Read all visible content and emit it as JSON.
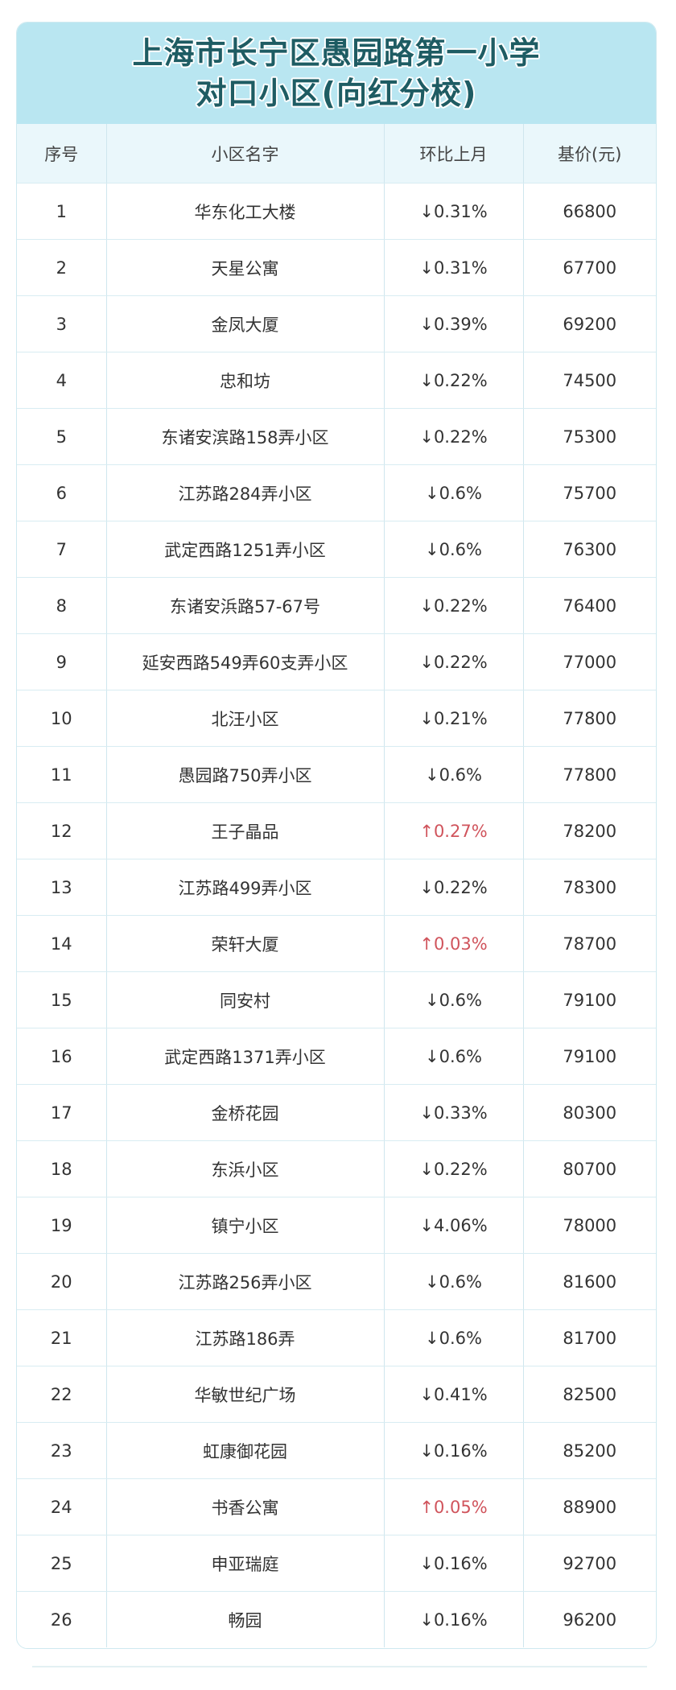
{
  "title": {
    "line1": "上海市长宁区愚园路第一小学",
    "line2": "对口小区(向红分校)"
  },
  "colors": {
    "title_bg": "#b9e6f1",
    "title_text": "#1e5c63",
    "header_bg": "#eaf7fb",
    "up": "#d0545c",
    "down": "#333333"
  },
  "table": {
    "headers": [
      "序号",
      "小区名字",
      "环比上月",
      "基价(元)"
    ],
    "rows": [
      {
        "no": "1",
        "name": "华东化工大楼",
        "change": "↓0.31%",
        "dir": "down",
        "price": "66800"
      },
      {
        "no": "2",
        "name": "天星公寓",
        "change": "↓0.31%",
        "dir": "down",
        "price": "67700"
      },
      {
        "no": "3",
        "name": "金凤大厦",
        "change": "↓0.39%",
        "dir": "down",
        "price": "69200"
      },
      {
        "no": "4",
        "name": "忠和坊",
        "change": "↓0.22%",
        "dir": "down",
        "price": "74500"
      },
      {
        "no": "5",
        "name": "东诸安滨路158弄小区",
        "change": "↓0.22%",
        "dir": "down",
        "price": "75300"
      },
      {
        "no": "6",
        "name": "江苏路284弄小区",
        "change": "↓0.6%",
        "dir": "down",
        "price": "75700"
      },
      {
        "no": "7",
        "name": "武定西路1251弄小区",
        "change": "↓0.6%",
        "dir": "down",
        "price": "76300"
      },
      {
        "no": "8",
        "name": "东诸安浜路57-67号",
        "change": "↓0.22%",
        "dir": "down",
        "price": "76400"
      },
      {
        "no": "9",
        "name": "延安西路549弄60支弄小区",
        "change": "↓0.22%",
        "dir": "down",
        "price": "77000"
      },
      {
        "no": "10",
        "name": "北汪小区",
        "change": "↓0.21%",
        "dir": "down",
        "price": "77800"
      },
      {
        "no": "11",
        "name": "愚园路750弄小区",
        "change": "↓0.6%",
        "dir": "down",
        "price": "77800"
      },
      {
        "no": "12",
        "name": "王子晶品",
        "change": "↑0.27%",
        "dir": "up",
        "price": "78200"
      },
      {
        "no": "13",
        "name": "江苏路499弄小区",
        "change": "↓0.22%",
        "dir": "down",
        "price": "78300"
      },
      {
        "no": "14",
        "name": "荣轩大厦",
        "change": "↑0.03%",
        "dir": "up",
        "price": "78700"
      },
      {
        "no": "15",
        "name": "同安村",
        "change": "↓0.6%",
        "dir": "down",
        "price": "79100"
      },
      {
        "no": "16",
        "name": "武定西路1371弄小区",
        "change": "↓0.6%",
        "dir": "down",
        "price": "79100"
      },
      {
        "no": "17",
        "name": "金桥花园",
        "change": "↓0.33%",
        "dir": "down",
        "price": "80300"
      },
      {
        "no": "18",
        "name": "东浜小区",
        "change": "↓0.22%",
        "dir": "down",
        "price": "80700"
      },
      {
        "no": "19",
        "name": "镇宁小区",
        "change": "↓4.06%",
        "dir": "down",
        "price": "78000"
      },
      {
        "no": "20",
        "name": "江苏路256弄小区",
        "change": "↓0.6%",
        "dir": "down",
        "price": "81600"
      },
      {
        "no": "21",
        "name": "江苏路186弄",
        "change": "↓0.6%",
        "dir": "down",
        "price": "81700"
      },
      {
        "no": "22",
        "name": "华敏世纪广场",
        "change": "↓0.41%",
        "dir": "down",
        "price": "82500"
      },
      {
        "no": "23",
        "name": "虹康御花园",
        "change": "↓0.16%",
        "dir": "down",
        "price": "85200"
      },
      {
        "no": "24",
        "name": "书香公寓",
        "change": "↑0.05%",
        "dir": "up",
        "price": "88900"
      },
      {
        "no": "25",
        "name": "申亚瑞庭",
        "change": "↓0.16%",
        "dir": "down",
        "price": "92700"
      },
      {
        "no": "26",
        "name": "畅园",
        "change": "↓0.16%",
        "dir": "down",
        "price": "96200"
      }
    ]
  }
}
